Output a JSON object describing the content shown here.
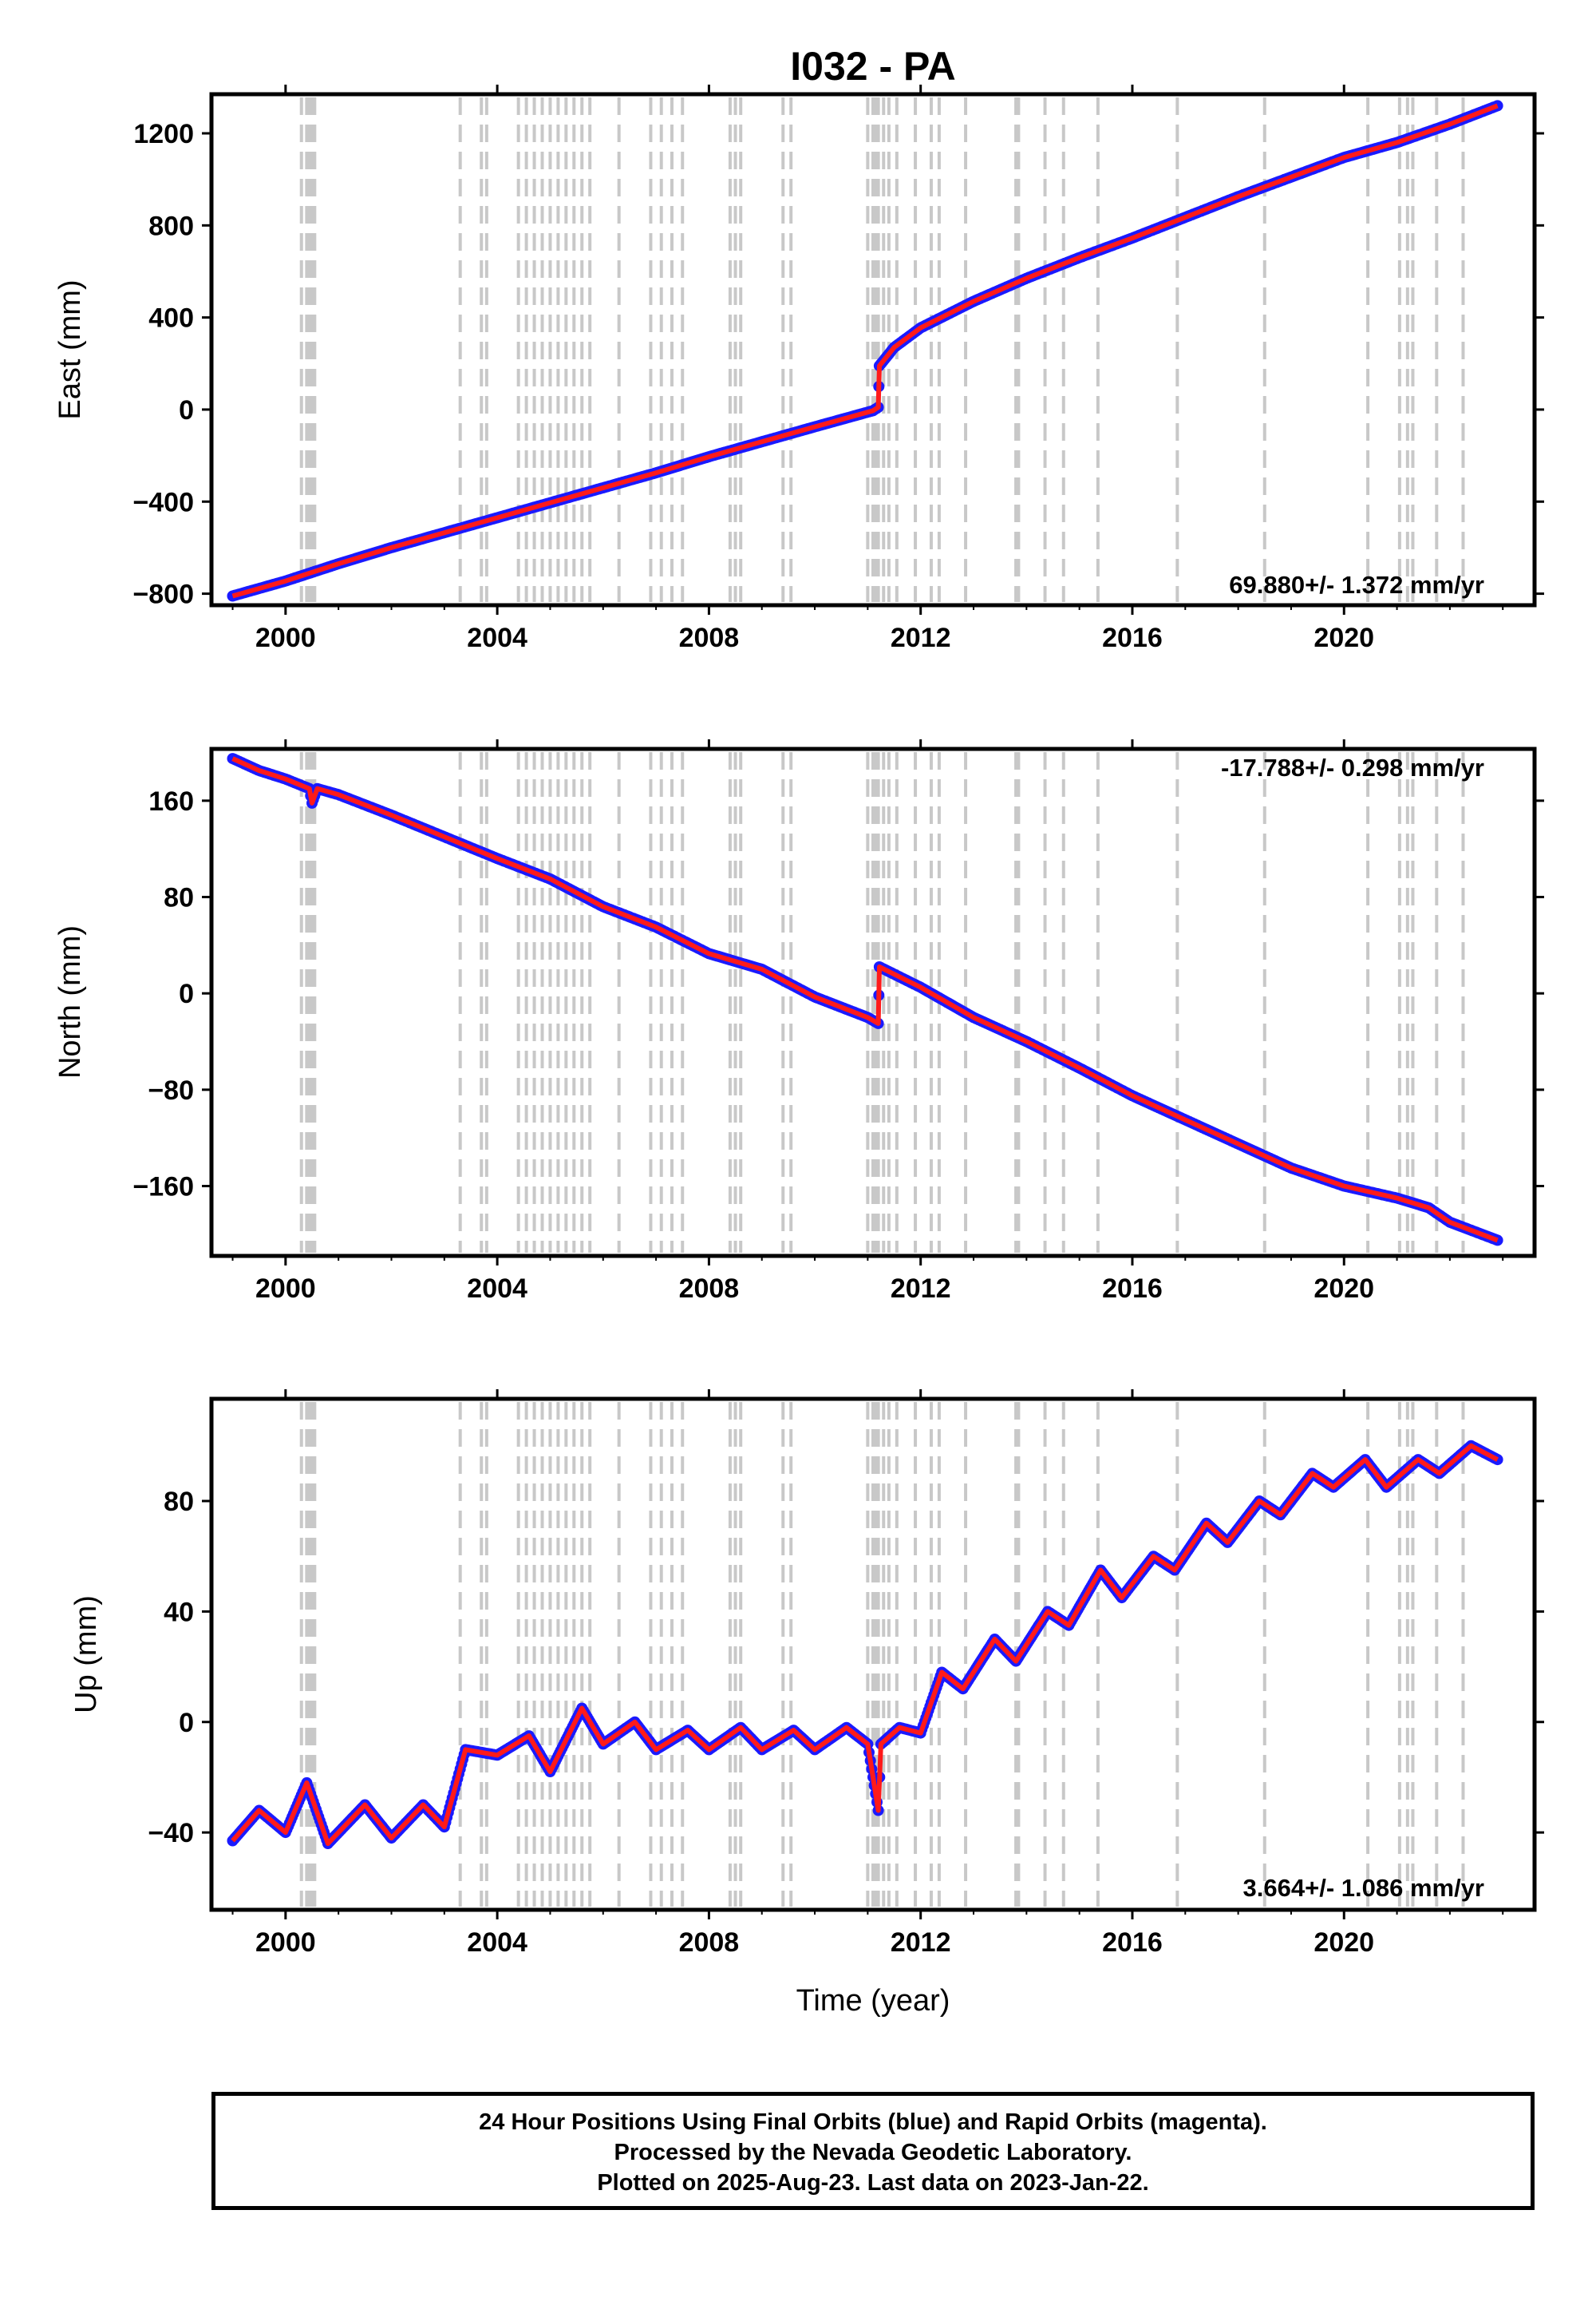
{
  "chart_data": [
    {
      "type": "scatter",
      "title": "I032 - PA",
      "ylabel": "East (mm)",
      "xlabel": "",
      "rate_text": "69.880+/- 1.372 mm/yr",
      "xlim": [
        1998.6,
        2023.6
      ],
      "ylim": [
        -850,
        1370
      ],
      "xticks": [
        "2000",
        "2004",
        "2008",
        "2012",
        "2016",
        "2020"
      ],
      "yticks": [
        "1200",
        "800",
        "400",
        "0",
        "−400",
        "−800"
      ],
      "series": [
        {
          "role": "observed",
          "color": "#1a1aff",
          "points": [
            [
              1999.0,
              -810
            ],
            [
              2000.0,
              -745
            ],
            [
              2001.0,
              -670
            ],
            [
              2002.0,
              -600
            ],
            [
              2003.0,
              -535
            ],
            [
              2004.0,
              -470
            ],
            [
              2005.0,
              -405
            ],
            [
              2006.0,
              -340
            ],
            [
              2007.0,
              -275
            ],
            [
              2008.0,
              -205
            ],
            [
              2009.0,
              -140
            ],
            [
              2010.0,
              -75
            ],
            [
              2011.1,
              -5
            ],
            [
              2011.2,
              10
            ],
            [
              2011.22,
              190
            ],
            [
              2011.5,
              270
            ],
            [
              2012.0,
              355
            ],
            [
              2013.0,
              470
            ],
            [
              2014.0,
              570
            ],
            [
              2015.0,
              660
            ],
            [
              2016.0,
              745
            ],
            [
              2017.0,
              835
            ],
            [
              2018.0,
              925
            ],
            [
              2019.0,
              1010
            ],
            [
              2020.0,
              1095
            ],
            [
              2021.0,
              1160
            ],
            [
              2022.0,
              1240
            ],
            [
              2022.9,
              1320
            ]
          ]
        },
        {
          "role": "model",
          "color": "#ff1a1a",
          "points": [
            [
              1999.0,
              -810
            ],
            [
              2000.0,
              -745
            ],
            [
              2001.0,
              -670
            ],
            [
              2002.0,
              -600
            ],
            [
              2003.0,
              -535
            ],
            [
              2004.0,
              -470
            ],
            [
              2005.0,
              -405
            ],
            [
              2006.0,
              -340
            ],
            [
              2007.0,
              -275
            ],
            [
              2008.0,
              -205
            ],
            [
              2009.0,
              -140
            ],
            [
              2010.0,
              -75
            ],
            [
              2011.1,
              -5
            ],
            [
              2011.2,
              10
            ],
            [
              2011.22,
              190
            ],
            [
              2011.5,
              270
            ],
            [
              2012.0,
              355
            ],
            [
              2013.0,
              470
            ],
            [
              2014.0,
              570
            ],
            [
              2015.0,
              660
            ],
            [
              2016.0,
              745
            ],
            [
              2017.0,
              835
            ],
            [
              2018.0,
              925
            ],
            [
              2019.0,
              1010
            ],
            [
              2020.0,
              1095
            ],
            [
              2021.0,
              1160
            ],
            [
              2022.0,
              1240
            ],
            [
              2022.9,
              1320
            ]
          ]
        }
      ]
    },
    {
      "type": "scatter",
      "title": "",
      "ylabel": "North (mm)",
      "xlabel": "",
      "rate_text": "-17.788+/- 0.298 mm/yr",
      "xlim": [
        1998.6,
        2023.6
      ],
      "ylim": [
        -218,
        203
      ],
      "xticks": [
        "2000",
        "2004",
        "2008",
        "2012",
        "2016",
        "2020"
      ],
      "yticks": [
        "160",
        "80",
        "0",
        "−80",
        "−160"
      ],
      "series": [
        {
          "role": "observed",
          "color": "#1a1aff",
          "points": [
            [
              1999.0,
              195
            ],
            [
              1999.5,
              185
            ],
            [
              2000.0,
              178
            ],
            [
              2000.45,
              170
            ],
            [
              2000.5,
              158
            ],
            [
              2000.6,
              170
            ],
            [
              2001.0,
              165
            ],
            [
              2002.0,
              148
            ],
            [
              2003.0,
              130
            ],
            [
              2004.0,
              112
            ],
            [
              2005.0,
              95
            ],
            [
              2006.0,
              72
            ],
            [
              2007.0,
              55
            ],
            [
              2008.0,
              33
            ],
            [
              2009.0,
              20
            ],
            [
              2010.0,
              -3
            ],
            [
              2011.0,
              -20
            ],
            [
              2011.2,
              -25
            ],
            [
              2011.22,
              22
            ],
            [
              2012.0,
              5
            ],
            [
              2013.0,
              -20
            ],
            [
              2014.0,
              -40
            ],
            [
              2015.0,
              -62
            ],
            [
              2016.0,
              -85
            ],
            [
              2017.0,
              -105
            ],
            [
              2018.0,
              -125
            ],
            [
              2019.0,
              -145
            ],
            [
              2020.0,
              -160
            ],
            [
              2021.0,
              -170
            ],
            [
              2021.6,
              -178
            ],
            [
              2022.0,
              -190
            ],
            [
              2022.9,
              -205
            ]
          ]
        },
        {
          "role": "model",
          "color": "#ff1a1a",
          "points": [
            [
              1999.0,
              195
            ],
            [
              1999.5,
              185
            ],
            [
              2000.0,
              178
            ],
            [
              2000.45,
              170
            ],
            [
              2000.5,
              158
            ],
            [
              2000.6,
              170
            ],
            [
              2001.0,
              165
            ],
            [
              2002.0,
              148
            ],
            [
              2003.0,
              130
            ],
            [
              2004.0,
              112
            ],
            [
              2005.0,
              95
            ],
            [
              2006.0,
              72
            ],
            [
              2007.0,
              55
            ],
            [
              2008.0,
              33
            ],
            [
              2009.0,
              20
            ],
            [
              2010.0,
              -3
            ],
            [
              2011.0,
              -20
            ],
            [
              2011.2,
              -25
            ],
            [
              2011.22,
              22
            ],
            [
              2012.0,
              5
            ],
            [
              2013.0,
              -20
            ],
            [
              2014.0,
              -40
            ],
            [
              2015.0,
              -62
            ],
            [
              2016.0,
              -85
            ],
            [
              2017.0,
              -105
            ],
            [
              2018.0,
              -125
            ],
            [
              2019.0,
              -145
            ],
            [
              2020.0,
              -160
            ],
            [
              2021.0,
              -170
            ],
            [
              2021.6,
              -178
            ],
            [
              2022.0,
              -190
            ],
            [
              2022.9,
              -205
            ]
          ]
        }
      ]
    },
    {
      "type": "scatter",
      "title": "",
      "ylabel": "Up (mm)",
      "xlabel": "Time (year)",
      "rate_text": "3.664+/- 1.086 mm/yr",
      "xlim": [
        1998.6,
        2023.6
      ],
      "ylim": [
        -68,
        117
      ],
      "xticks": [
        "2000",
        "2004",
        "2008",
        "2012",
        "2016",
        "2020"
      ],
      "yticks": [
        "80",
        "40",
        "0",
        "−40"
      ],
      "series": [
        {
          "role": "observed",
          "color": "#1a1aff",
          "points": [
            [
              1999.0,
              -43
            ],
            [
              1999.5,
              -32
            ],
            [
              2000.0,
              -40
            ],
            [
              2000.4,
              -22
            ],
            [
              2000.8,
              -44
            ],
            [
              2001.5,
              -30
            ],
            [
              2002.0,
              -42
            ],
            [
              2002.6,
              -30
            ],
            [
              2003.0,
              -38
            ],
            [
              2003.4,
              -10
            ],
            [
              2004.0,
              -12
            ],
            [
              2004.6,
              -5
            ],
            [
              2005.0,
              -18
            ],
            [
              2005.6,
              5
            ],
            [
              2006.0,
              -8
            ],
            [
              2006.6,
              0
            ],
            [
              2007.0,
              -10
            ],
            [
              2007.6,
              -3
            ],
            [
              2008.0,
              -10
            ],
            [
              2008.6,
              -2
            ],
            [
              2009.0,
              -10
            ],
            [
              2009.6,
              -3
            ],
            [
              2010.0,
              -10
            ],
            [
              2010.6,
              -2
            ],
            [
              2011.0,
              -8
            ],
            [
              2011.2,
              -32
            ],
            [
              2011.25,
              -8
            ],
            [
              2011.6,
              -2
            ],
            [
              2012.0,
              -4
            ],
            [
              2012.4,
              18
            ],
            [
              2012.8,
              12
            ],
            [
              2013.4,
              30
            ],
            [
              2013.8,
              22
            ],
            [
              2014.4,
              40
            ],
            [
              2014.8,
              35
            ],
            [
              2015.4,
              55
            ],
            [
              2015.8,
              45
            ],
            [
              2016.4,
              60
            ],
            [
              2016.8,
              55
            ],
            [
              2017.4,
              72
            ],
            [
              2017.8,
              65
            ],
            [
              2018.4,
              80
            ],
            [
              2018.8,
              75
            ],
            [
              2019.4,
              90
            ],
            [
              2019.8,
              85
            ],
            [
              2020.4,
              95
            ],
            [
              2020.8,
              85
            ],
            [
              2021.4,
              95
            ],
            [
              2021.8,
              90
            ],
            [
              2022.4,
              100
            ],
            [
              2022.9,
              95
            ]
          ]
        },
        {
          "role": "model",
          "color": "#ff1a1a",
          "points": [
            [
              1999.0,
              -43
            ],
            [
              1999.5,
              -32
            ],
            [
              2000.0,
              -40
            ],
            [
              2000.4,
              -22
            ],
            [
              2000.8,
              -44
            ],
            [
              2001.5,
              -30
            ],
            [
              2002.0,
              -42
            ],
            [
              2002.6,
              -30
            ],
            [
              2003.0,
              -38
            ],
            [
              2003.4,
              -10
            ],
            [
              2004.0,
              -12
            ],
            [
              2004.6,
              -5
            ],
            [
              2005.0,
              -18
            ],
            [
              2005.6,
              5
            ],
            [
              2006.0,
              -8
            ],
            [
              2006.6,
              0
            ],
            [
              2007.0,
              -10
            ],
            [
              2007.6,
              -3
            ],
            [
              2008.0,
              -10
            ],
            [
              2008.6,
              -2
            ],
            [
              2009.0,
              -10
            ],
            [
              2009.6,
              -3
            ],
            [
              2010.0,
              -10
            ],
            [
              2010.6,
              -2
            ],
            [
              2011.0,
              -8
            ],
            [
              2011.2,
              -32
            ],
            [
              2011.25,
              -8
            ],
            [
              2011.6,
              -2
            ],
            [
              2012.0,
              -4
            ],
            [
              2012.4,
              18
            ],
            [
              2012.8,
              12
            ],
            [
              2013.4,
              30
            ],
            [
              2013.8,
              22
            ],
            [
              2014.4,
              40
            ],
            [
              2014.8,
              35
            ],
            [
              2015.4,
              55
            ],
            [
              2015.8,
              45
            ],
            [
              2016.4,
              60
            ],
            [
              2016.8,
              55
            ],
            [
              2017.4,
              72
            ],
            [
              2017.8,
              65
            ],
            [
              2018.4,
              80
            ],
            [
              2018.8,
              75
            ],
            [
              2019.4,
              90
            ],
            [
              2019.8,
              85
            ],
            [
              2020.4,
              95
            ],
            [
              2020.8,
              85
            ],
            [
              2021.4,
              95
            ],
            [
              2021.8,
              90
            ],
            [
              2022.4,
              100
            ],
            [
              2022.9,
              95
            ]
          ]
        }
      ]
    }
  ],
  "event_years": [
    2000.3,
    2000.4,
    2000.45,
    2000.5,
    2000.55,
    2003.3,
    2003.7,
    2003.8,
    2004.4,
    2004.55,
    2004.7,
    2004.85,
    2005.0,
    2005.15,
    2005.3,
    2005.45,
    2005.6,
    2005.75,
    2006.3,
    2006.9,
    2007.1,
    2007.3,
    2007.5,
    2008.4,
    2008.5,
    2008.6,
    2009.4,
    2009.55,
    2011.0,
    2011.1,
    2011.15,
    2011.2,
    2011.3,
    2011.4,
    2011.55,
    2011.9,
    2012.2,
    2012.35,
    2012.85,
    2013.8,
    2013.85,
    2014.35,
    2014.7,
    2015.35,
    2016.85,
    2018.5,
    2020.45,
    2021.05,
    2021.2,
    2021.3,
    2021.75,
    2022.25
  ],
  "caption": {
    "line1": "24 Hour Positions Using Final Orbits (blue) and Rapid Orbits (magenta).",
    "line2": "Processed by the Nevada Geodetic Laboratory.",
    "line3": "Plotted on 2025-Aug-23. Last data on 2023-Jan-22."
  }
}
